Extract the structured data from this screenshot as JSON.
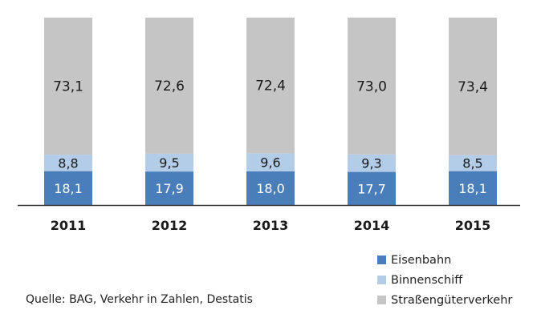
{
  "chart_data": {
    "type": "bar",
    "stacked": true,
    "categories": [
      "2011",
      "2012",
      "2013",
      "2014",
      "2015"
    ],
    "series": [
      {
        "name": "Eisenbahn",
        "color": "#4a7ebb",
        "values": [
          18.1,
          17.9,
          18.0,
          17.7,
          18.1
        ],
        "labels": [
          "18,1",
          "17,9",
          "18,0",
          "17,7",
          "18,1"
        ]
      },
      {
        "name": "Binnenschiff",
        "color": "#b3cde8",
        "values": [
          8.8,
          9.5,
          9.6,
          9.3,
          8.5
        ],
        "labels": [
          "8,8",
          "9,5",
          "9,6",
          "9,3",
          "8,5"
        ]
      },
      {
        "name": "Straßengüterverkehr",
        "color": "#c5c5c5",
        "values": [
          73.1,
          72.6,
          72.4,
          73.0,
          73.4
        ],
        "labels": [
          "73,1",
          "72,6",
          "72,4",
          "73,0",
          "73,4"
        ]
      }
    ],
    "ylim": [
      0,
      100
    ],
    "grid": false,
    "legend_position": "bottom-right"
  },
  "source": "Quelle: BAG, Verkehr in Zahlen, Destatis"
}
